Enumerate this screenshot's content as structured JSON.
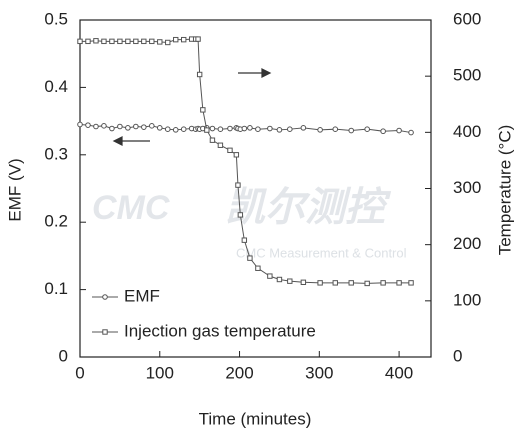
{
  "chart_data": {
    "type": "line",
    "x_label": "Time (minutes)",
    "y_label": "EMF (V)",
    "y2_label": "Temperature (°C)",
    "x": [
      0,
      10,
      20,
      30,
      40,
      50,
      60,
      70,
      80,
      90,
      100,
      110,
      120,
      130,
      140,
      145,
      148,
      150,
      154,
      159,
      166,
      176,
      188,
      196,
      198,
      201,
      206,
      213,
      223,
      238,
      250,
      263,
      280,
      301,
      320,
      340,
      360,
      380,
      400,
      415
    ],
    "series": [
      {
        "name": "EMF",
        "color": "#555555",
        "marker": "circle",
        "values": [
          0.345,
          0.344,
          0.342,
          0.343,
          0.339,
          0.342,
          0.34,
          0.342,
          0.341,
          0.343,
          0.34,
          0.338,
          0.337,
          0.338,
          0.339,
          0.338,
          0.339,
          0.338,
          0.339,
          0.34,
          0.339,
          0.338,
          0.339,
          0.34,
          0.339,
          0.338,
          0.339,
          0.34,
          0.338,
          0.339,
          0.337,
          0.338,
          0.34,
          0.337,
          0.338,
          0.336,
          0.338,
          0.335,
          0.336,
          0.333
        ]
      },
      {
        "name": "Injection gas temperature",
        "color": "#555555",
        "marker": "square",
        "axis": "y2",
        "values": [
          562,
          562,
          563,
          562,
          562,
          562,
          562,
          562,
          562,
          562,
          561,
          560,
          565,
          565,
          566,
          566,
          566,
          503,
          440,
          404,
          386,
          377,
          368,
          360,
          306,
          253,
          208,
          176,
          158,
          144,
          138,
          135,
          133,
          132,
          132,
          132,
          131,
          132,
          132,
          132
        ]
      }
    ],
    "xlim": [
      0,
      440
    ],
    "xticks": [
      0,
      100,
      200,
      300,
      400
    ],
    "ylim": [
      0,
      0.5
    ],
    "yticks": [
      0,
      0.1,
      0.2,
      0.3,
      0.4,
      0.5
    ],
    "y2lim": [
      0,
      600
    ],
    "y2ticks": [
      0,
      100,
      200,
      300,
      400,
      500,
      600
    ],
    "grid": false,
    "legend": "lower left",
    "watermark": {
      "logo": "CMC",
      "name": "凯尔测控",
      "subtitle": "CMC Measurement & Control"
    }
  }
}
